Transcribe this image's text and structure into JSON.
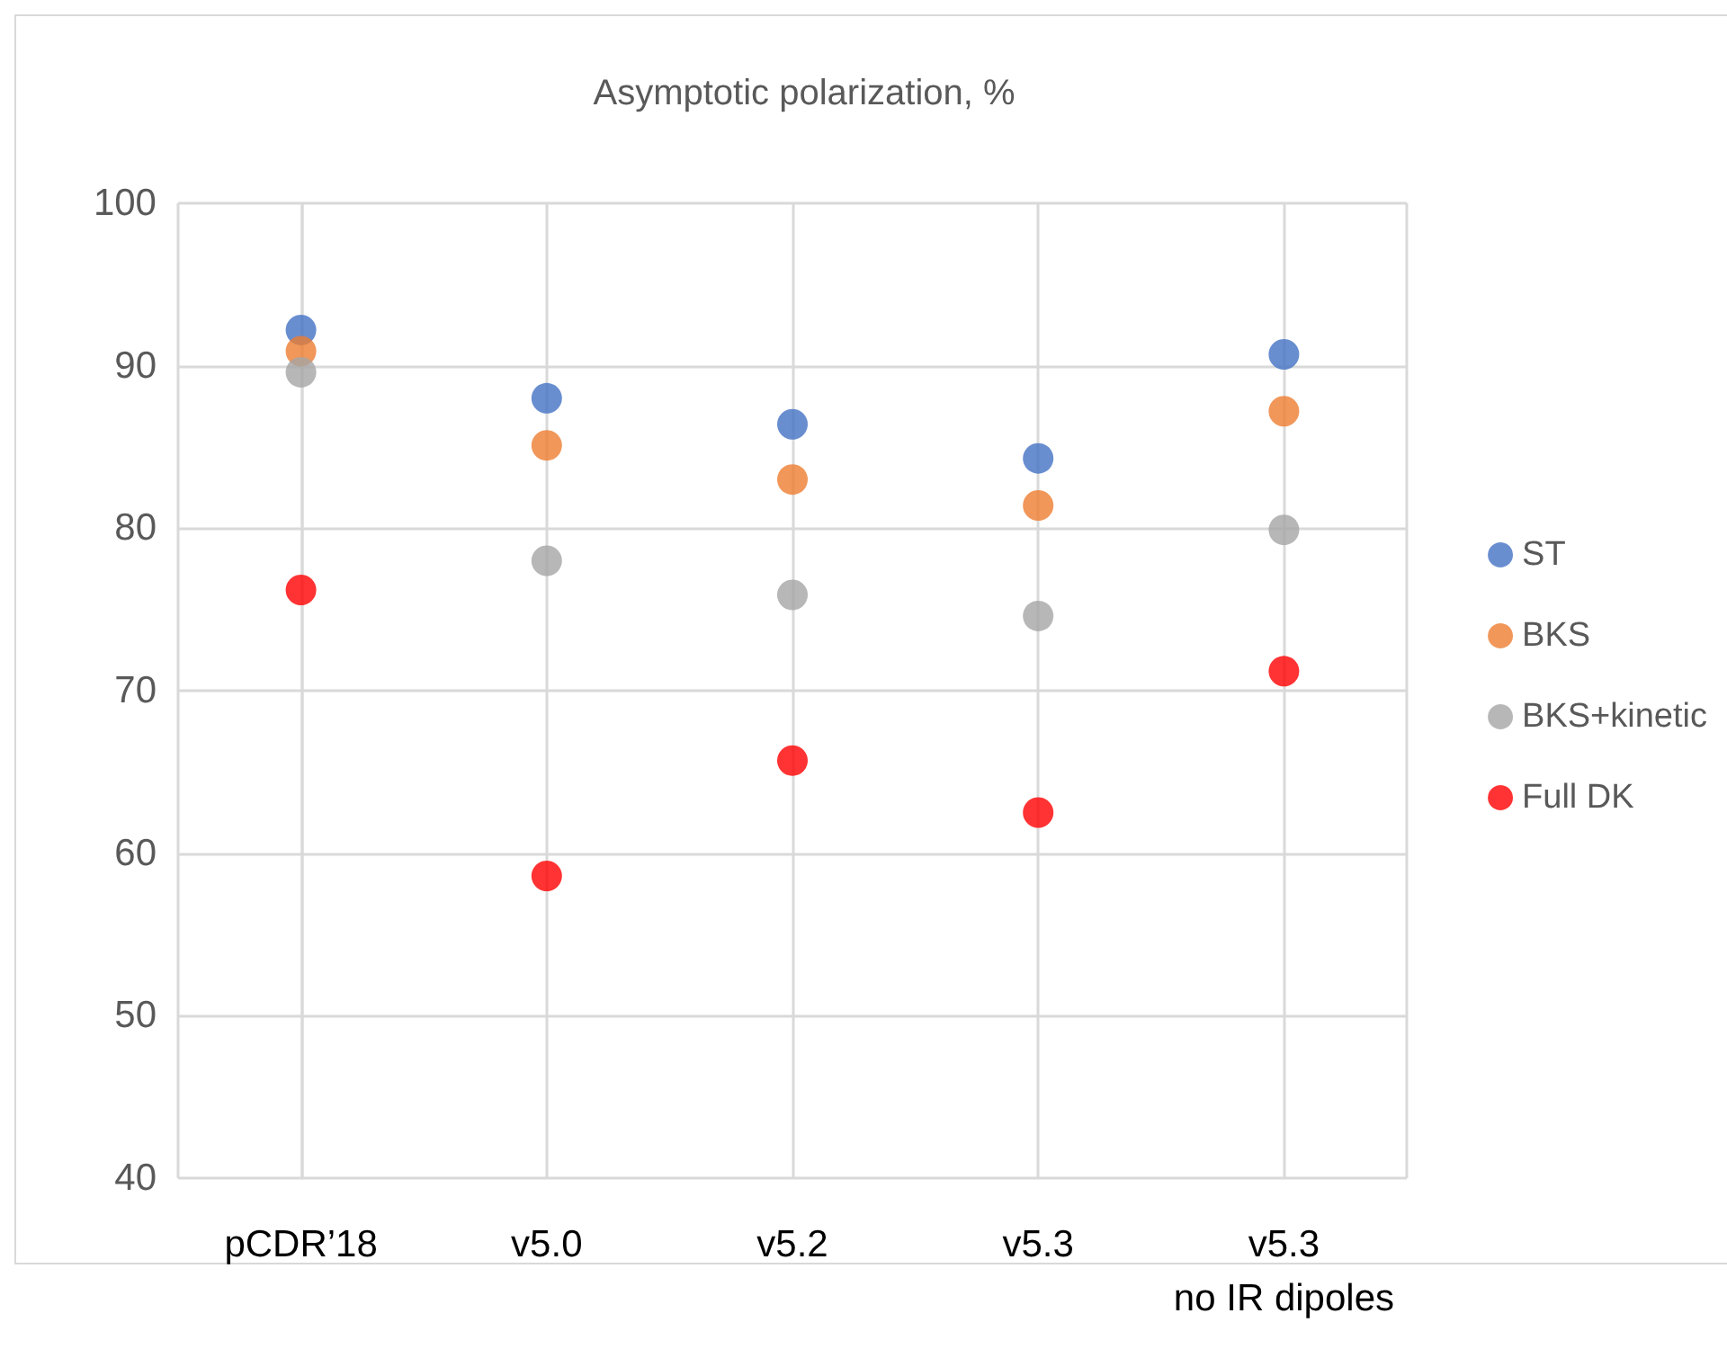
{
  "chart_data": {
    "type": "scatter",
    "title": "Asymptotic polarization, %",
    "categories": [
      "pCDR’18",
      "v5.0",
      "v5.2",
      "v5.3",
      "v5.3\nno IR dipoles"
    ],
    "series": [
      {
        "name": "ST",
        "color": "#4472c4",
        "values": [
          92.2,
          88.0,
          86.4,
          84.3,
          90.7
        ]
      },
      {
        "name": "BKS",
        "color": "#ed7d31",
        "values": [
          90.9,
          85.1,
          83.0,
          81.4,
          87.2
        ]
      },
      {
        "name": "BKS+kinetic",
        "color": "#a5a5a5",
        "values": [
          89.6,
          78.0,
          75.9,
          74.6,
          79.9
        ]
      },
      {
        "name": "Full DK",
        "color": "#ff0000",
        "values": [
          76.2,
          58.6,
          65.7,
          62.5,
          71.2
        ]
      }
    ],
    "ylim": [
      40,
      100
    ],
    "yticks": [
      40,
      50,
      60,
      70,
      80,
      90,
      100
    ],
    "grid": true,
    "legend": "right",
    "marker": "circle"
  }
}
